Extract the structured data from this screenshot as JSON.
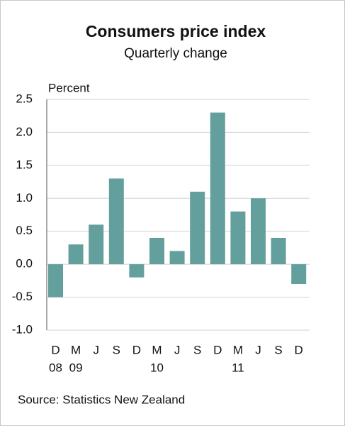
{
  "chart_data": {
    "type": "bar",
    "title": "Consumers price index",
    "subtitle": "Quarterly change",
    "y_axis_label": "Percent",
    "categories": [
      "D",
      "M",
      "J",
      "S",
      "D",
      "M",
      "J",
      "S",
      "D",
      "M",
      "J",
      "S",
      "D"
    ],
    "year_labels": [
      "08",
      "09",
      null,
      null,
      null,
      "10",
      null,
      null,
      null,
      "11",
      null,
      null,
      null
    ],
    "values": [
      -0.5,
      0.3,
      0.6,
      1.3,
      -0.2,
      0.4,
      0.2,
      1.1,
      2.3,
      0.8,
      1.0,
      0.4,
      -0.3
    ],
    "color": "#63a09d",
    "ylim": [
      -1,
      2.5
    ],
    "yticks": [
      {
        "value": -1,
        "label": "-1.0"
      },
      -0.5,
      {
        "value": 0,
        "label": "0.0"
      },
      0.5,
      {
        "value": 1,
        "label": "1.0"
      },
      1.5,
      {
        "value": 2,
        "label": "2.0"
      },
      2.5
    ],
    "grid": true,
    "source": "Source: Statistics New Zealand"
  }
}
